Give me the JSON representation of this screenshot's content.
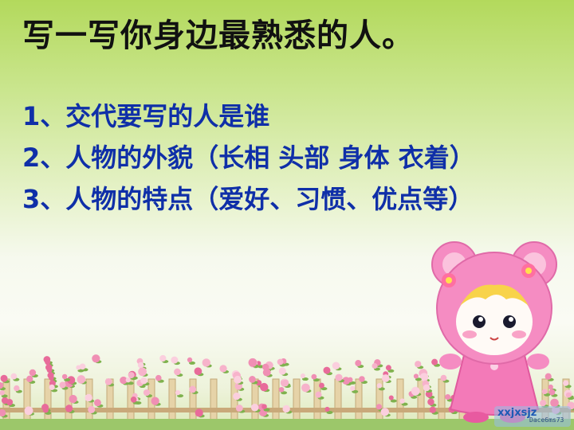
{
  "slide": {
    "title": "写一写你身边最熟悉的人。",
    "items": [
      "1、交代要写的人是谁",
      "2、人物的外貌（长相 头部 身体 衣着）",
      "3、人物的特点（爱好、习惯、优点等）"
    ]
  },
  "watermark": {
    "text": "xxjxsjz",
    "subtext": "Dace6ms73"
  },
  "colors": {
    "title": "#111111",
    "items": "#0f2fa8",
    "background_top": "#b3d95c",
    "background_mid": "#f6f9ee"
  },
  "decorations": [
    "flower-fence",
    "pink-bear-hood-girl",
    "site-logo"
  ]
}
